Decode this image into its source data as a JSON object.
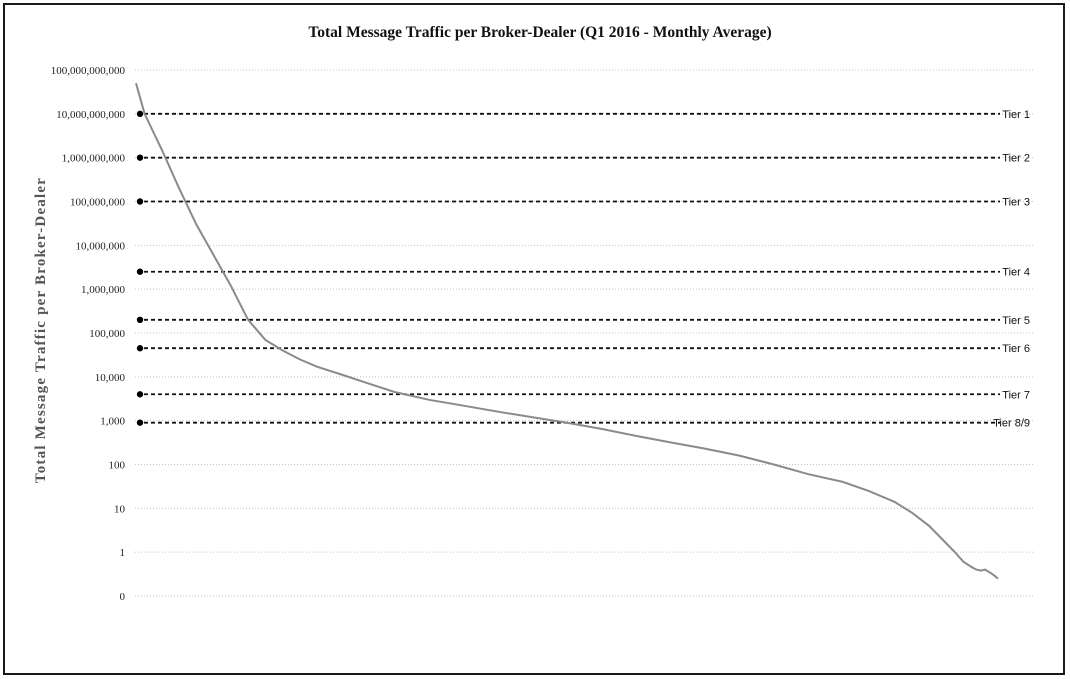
{
  "chart_data": {
    "type": "line",
    "title": "Total Message Traffic per Broker-Dealer (Q1 2016 - Monthly Average)",
    "xlabel": "",
    "ylabel": "Total Message Traffic per Broker-Dealer",
    "y_scale": "log",
    "grid": true,
    "y_ticks": [
      {
        "value": 100000000000,
        "label": "100,000,000,000"
      },
      {
        "value": 10000000000,
        "label": "10,000,000,000"
      },
      {
        "value": 1000000000,
        "label": "1,000,000,000"
      },
      {
        "value": 100000000,
        "label": "100,000,000"
      },
      {
        "value": 10000000,
        "label": "10,000,000"
      },
      {
        "value": 1000000,
        "label": "1,000,000"
      },
      {
        "value": 100000,
        "label": "100,000"
      },
      {
        "value": 10000,
        "label": "10,000"
      },
      {
        "value": 1000,
        "label": "1,000"
      },
      {
        "value": 100,
        "label": "100"
      },
      {
        "value": 10,
        "label": "10"
      },
      {
        "value": 1,
        "label": "1"
      },
      {
        "value": 0.1,
        "label": "0"
      }
    ],
    "tiers": [
      {
        "name": "Tier 1",
        "threshold": 10000000000
      },
      {
        "name": "Tier 2",
        "threshold": 1000000000
      },
      {
        "name": "Tier 3",
        "threshold": 100000000
      },
      {
        "name": "Tier 4",
        "threshold": 2500000
      },
      {
        "name": "Tier 5",
        "threshold": 200000
      },
      {
        "name": "Tier 6",
        "threshold": 45000
      },
      {
        "name": "Tier 7",
        "threshold": 4000
      },
      {
        "name": "Tier 8/9",
        "threshold": 900
      }
    ],
    "series": [
      {
        "name": "",
        "x_fraction": [
          0,
          0.01,
          0.03,
          0.05,
          0.07,
          0.09,
          0.11,
          0.13,
          0.15,
          0.17,
          0.19,
          0.21,
          0.24,
          0.27,
          0.3,
          0.34,
          0.38,
          0.42,
          0.46,
          0.5,
          0.54,
          0.58,
          0.62,
          0.66,
          0.7,
          0.74,
          0.78,
          0.82,
          0.85,
          0.88,
          0.9,
          0.92,
          0.935,
          0.95,
          0.96,
          0.97,
          0.975,
          0.98,
          0.985,
          0.99,
          0.995,
          1.0
        ],
        "values": [
          50000000000,
          10000000000,
          1500000000,
          200000000,
          30000000,
          6000000,
          1200000,
          200000,
          70000,
          40000,
          25000,
          17000,
          11000,
          7000,
          4500,
          3000,
          2200,
          1600,
          1200,
          900,
          650,
          450,
          320,
          230,
          160,
          100,
          60,
          40,
          25,
          14,
          8,
          4,
          2,
          1,
          0.6,
          0.45,
          0.4,
          0.38,
          0.4,
          0.35,
          0.3,
          0.25
        ]
      }
    ]
  }
}
